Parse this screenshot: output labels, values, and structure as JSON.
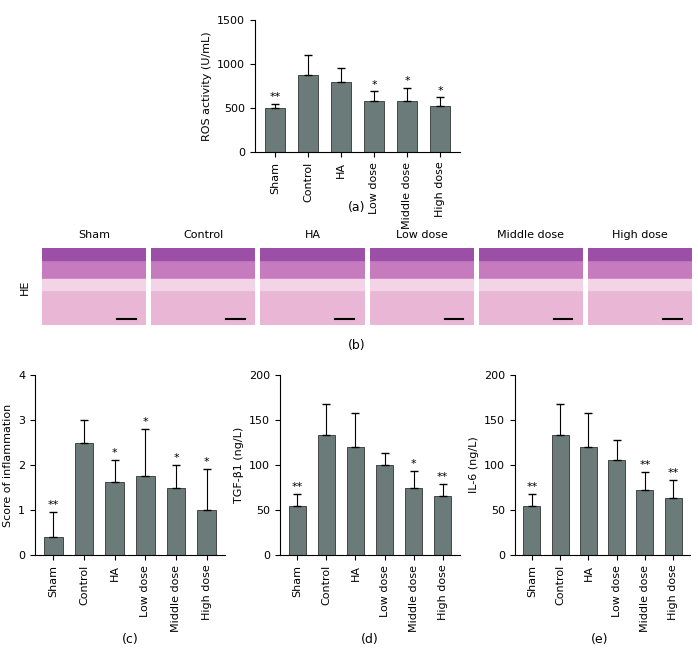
{
  "chart_data": [
    {
      "type": "bar",
      "panel_label": "(a)",
      "y_label": "ROS activity (U/mL)",
      "categories": [
        "Sham",
        "Control",
        "HA",
        "Low dose",
        "Middle dose",
        "High dose"
      ],
      "values": [
        500,
        880,
        790,
        585,
        580,
        525
      ],
      "errors": [
        50,
        220,
        170,
        110,
        150,
        100
      ],
      "annotations": [
        "**",
        null,
        null,
        "*",
        "*",
        "*"
      ],
      "color": "#6b7b79",
      "ylim": [
        0,
        1500
      ],
      "yticks": [
        0,
        500,
        1000,
        1500
      ]
    },
    {
      "type": "bar",
      "panel_label": "(c)",
      "y_label": "Score of inflammation",
      "categories": [
        "Sham",
        "Control",
        "HA",
        "Low dose",
        "Middle dose",
        "High dose"
      ],
      "values": [
        0.4,
        2.5,
        1.62,
        1.75,
        1.5,
        1.0
      ],
      "errors": [
        0.55,
        0.5,
        0.5,
        1.05,
        0.5,
        0.92
      ],
      "annotations": [
        "**",
        null,
        "*",
        "*",
        "*",
        "*"
      ],
      "color": "#6b7b79",
      "ylim": [
        0,
        4
      ],
      "yticks": [
        0,
        1,
        2,
        3,
        4
      ]
    },
    {
      "type": "bar",
      "panel_label": "(d)",
      "y_label": "TGF-β1 (ng/L)",
      "categories": [
        "Sham",
        "Control",
        "HA",
        "Low dose",
        "Middle dose",
        "High dose"
      ],
      "values": [
        55,
        133,
        120,
        100,
        75,
        66
      ],
      "errors": [
        13,
        35,
        38,
        13,
        18,
        13
      ],
      "annotations": [
        "**",
        null,
        null,
        null,
        "*",
        "**"
      ],
      "color": "#6b7b79",
      "ylim": [
        0,
        200
      ],
      "yticks": [
        0,
        50,
        100,
        150,
        200
      ]
    },
    {
      "type": "bar",
      "panel_label": "(e)",
      "y_label": "IL-6 (ng/L)",
      "categories": [
        "Sham",
        "Control",
        "HA",
        "Low dose",
        "Middle dose",
        "High dose"
      ],
      "values": [
        55,
        133,
        120,
        106,
        72,
        63
      ],
      "errors": [
        13,
        35,
        38,
        22,
        20,
        20
      ],
      "annotations": [
        "**",
        null,
        null,
        null,
        "**",
        "**"
      ],
      "color": "#6b7b79",
      "ylim": [
        0,
        200
      ],
      "yticks": [
        0,
        50,
        100,
        150,
        200
      ]
    }
  ],
  "images": {
    "panel_label": "(b)",
    "row_label": "HE",
    "titles": [
      "Sham",
      "Control",
      "HA",
      "Low dose",
      "Middle dose",
      "High dose"
    ]
  }
}
